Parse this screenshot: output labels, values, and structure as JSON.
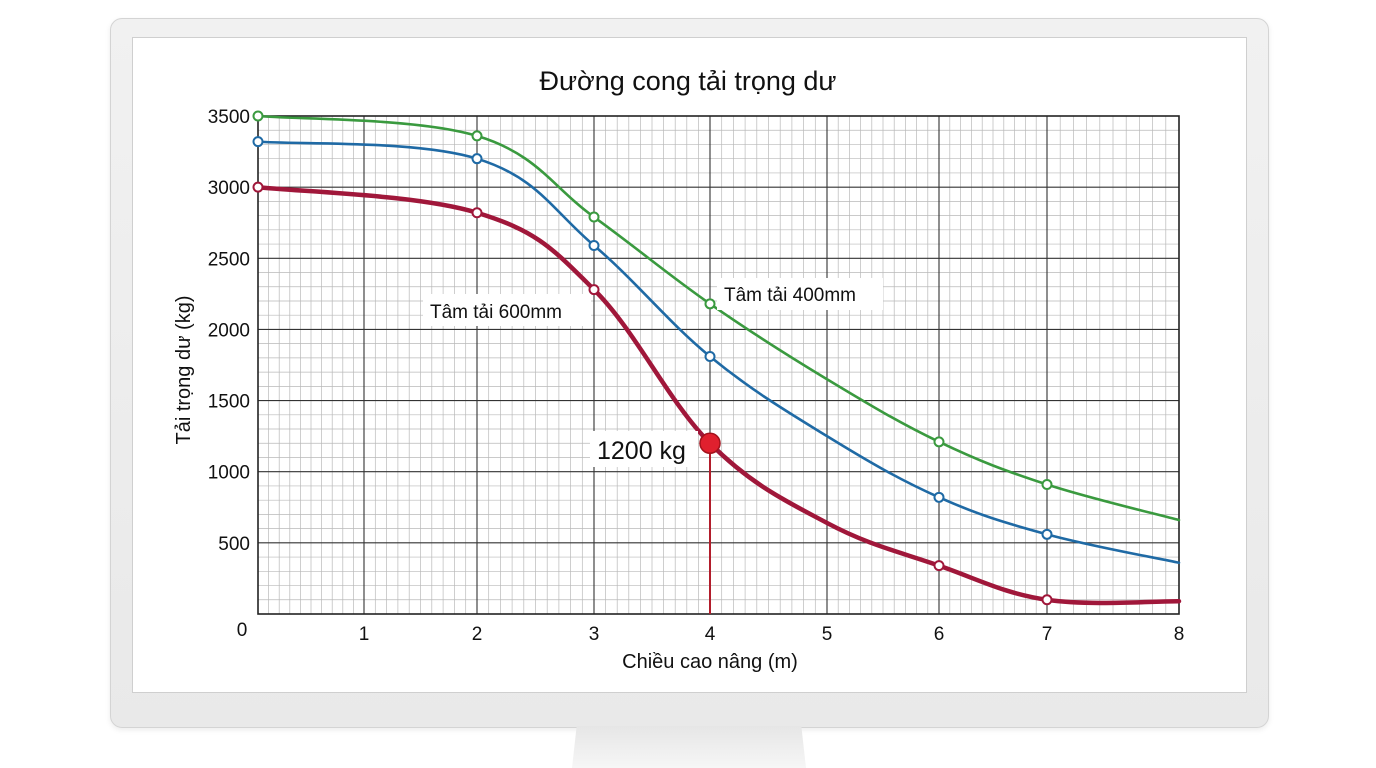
{
  "chart_data": {
    "type": "line",
    "title": "Đường cong tải trọng dư",
    "xlabel": "Chiều cao nâng (m)",
    "ylabel": "Tải trọng dư (kg)",
    "xlim": [
      0,
      8
    ],
    "ylim": [
      0,
      3500
    ],
    "x_ticks": [
      "0",
      "1",
      "2",
      "3",
      "4",
      "5",
      "6",
      "7",
      "8"
    ],
    "y_ticks": [
      "500",
      "1000",
      "1500",
      "2000",
      "2500",
      "3000",
      "3500"
    ],
    "grid": true,
    "series": [
      {
        "name": "Tâm tải 400mm",
        "color": "#3a9a3f",
        "points": [
          [
            0,
            3500
          ],
          [
            2,
            3360
          ],
          [
            3,
            2790
          ],
          [
            4,
            2180
          ],
          [
            5,
            1650
          ],
          [
            6,
            1210
          ],
          [
            7,
            910
          ],
          [
            8,
            660
          ]
        ],
        "markers": [
          0,
          1,
          2,
          3,
          5,
          6
        ]
      },
      {
        "name": "",
        "color": "#1f6aa5",
        "points": [
          [
            0,
            3320
          ],
          [
            2,
            3200
          ],
          [
            3,
            2590
          ],
          [
            4,
            1810
          ],
          [
            5,
            1250
          ],
          [
            6,
            820
          ],
          [
            7,
            560
          ],
          [
            8,
            360
          ]
        ],
        "markers": [
          0,
          1,
          2,
          3,
          5,
          6
        ]
      },
      {
        "name": "Tâm tải 600mm",
        "color": "#a0173a",
        "points": [
          [
            0,
            3000
          ],
          [
            2,
            2820
          ],
          [
            3,
            2280
          ],
          [
            4,
            1200
          ],
          [
            5,
            640
          ],
          [
            6,
            340
          ],
          [
            7,
            100
          ],
          [
            8,
            90
          ]
        ],
        "markers": [
          0,
          1,
          2,
          5,
          6
        ]
      }
    ],
    "annotation": {
      "x": 4,
      "y": 1200,
      "label": "1200 kg",
      "color": "#e0202e"
    }
  }
}
